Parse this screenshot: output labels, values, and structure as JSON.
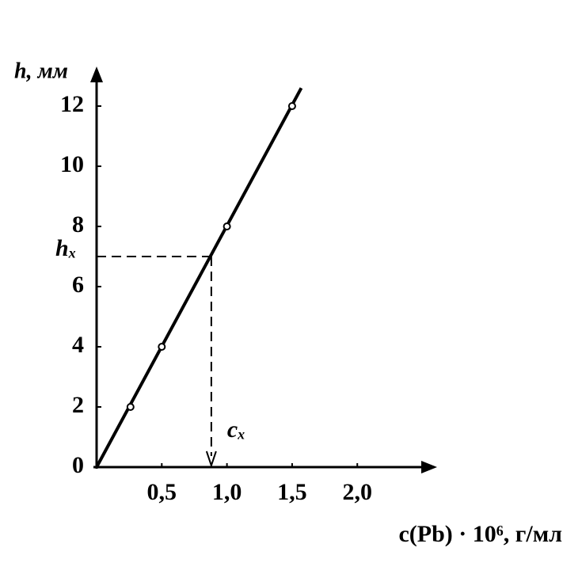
{
  "chart_data": {
    "type": "scatter",
    "y_label": "h, мм",
    "x_label": "c(Pb) · 10⁶, г/мл",
    "xlim": [
      0,
      2.6
    ],
    "ylim": [
      0,
      13.2
    ],
    "xticks": [
      {
        "value": 0.5,
        "label": "0,5"
      },
      {
        "value": 1.0,
        "label": "1,0"
      },
      {
        "value": 1.5,
        "label": "1,5"
      },
      {
        "value": 2.0,
        "label": "2,0"
      }
    ],
    "yticks": [
      0,
      2,
      4,
      6,
      8,
      10,
      12
    ],
    "color": "#000000",
    "series": [
      {
        "name": "points",
        "x": [
          0.26,
          0.5,
          1.0,
          1.5
        ],
        "values": [
          2,
          4,
          8,
          12
        ]
      },
      {
        "name": "fit",
        "x": [
          0,
          1.57
        ],
        "values": [
          0,
          12.6
        ]
      }
    ],
    "annotations": [
      {
        "label": "hₓ",
        "value": 7
      },
      {
        "label": "cₓ",
        "value": 0.88
      }
    ]
  }
}
